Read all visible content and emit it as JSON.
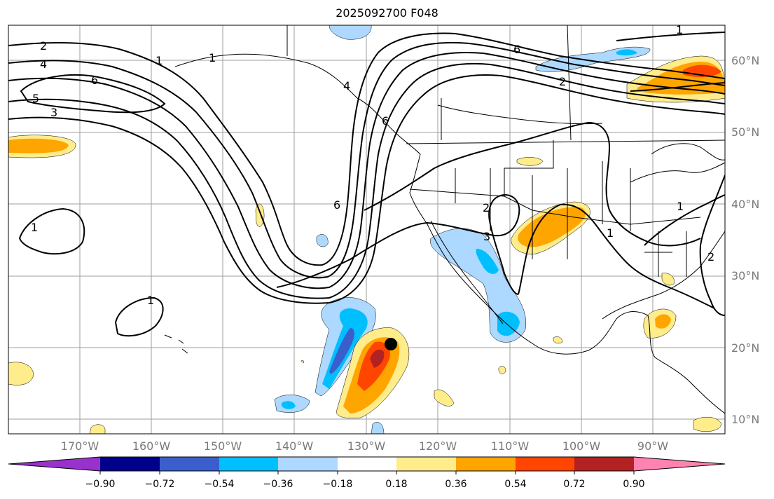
{
  "title": "2025092700 F048",
  "lat_labels": [
    "60°N",
    "50°N",
    "40°N",
    "30°N",
    "20°N",
    "10°N"
  ],
  "lon_labels": [
    "170°W",
    "160°W",
    "150°W",
    "140°W",
    "130°W",
    "120°W",
    "110°W",
    "100°W",
    "90°W"
  ],
  "colorbar": {
    "ticks": [
      "−0.90",
      "−0.72",
      "−0.54",
      "−0.36",
      "−0.18",
      "0.18",
      "0.36",
      "0.54",
      "0.72",
      "0.90"
    ],
    "colors": [
      "#9932cc",
      "#00008b",
      "#3a5fcd",
      "#00bfff",
      "#add8ff",
      "#ffffff",
      "#ffec8b",
      "#ffa500",
      "#ff4500",
      "#b22222",
      "#ff83b0"
    ]
  },
  "contour_labels": [
    "2",
    "4",
    "6",
    "5",
    "3",
    "1",
    "1",
    "6",
    "4",
    "6",
    "2",
    "3",
    "1",
    "1",
    "6",
    "2",
    "1",
    "1",
    "1",
    "2"
  ]
}
